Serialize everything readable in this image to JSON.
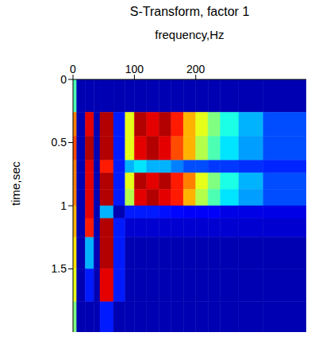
{
  "chart_data": {
    "type": "heatmap",
    "title": "S-Transform, factor 1",
    "x_label": "frequency,Hz",
    "y_label": "time,sec",
    "xlim": [
      0,
      380
    ],
    "ylim": [
      0,
      2
    ],
    "xticks": [
      0,
      100,
      200
    ],
    "yticks": [
      0,
      0.5,
      1,
      1.5
    ],
    "x_edges": [
      0,
      6,
      20,
      34,
      44,
      66,
      85,
      100,
      120,
      140,
      160,
      180,
      200,
      220,
      240,
      270,
      310,
      380
    ],
    "y_edges": [
      0,
      0.26,
      0.45,
      0.64,
      0.74,
      0.87,
      1.0,
      1.1,
      1.25,
      1.5,
      1.76,
      2.0
    ],
    "color_range": [
      0,
      1
    ],
    "cells": [
      [
        0.45,
        0.05,
        0.05,
        0.05,
        0.05,
        0.05,
        0.05,
        0.05,
        0.05,
        0.05,
        0.05,
        0.05,
        0.05,
        0.05,
        0.05,
        0.05,
        0.05
      ],
      [
        0.75,
        0.05,
        0.9,
        0.05,
        0.95,
        0.15,
        0.6,
        0.95,
        0.9,
        0.95,
        0.85,
        0.7,
        0.6,
        0.5,
        0.4,
        0.3,
        0.2
      ],
      [
        0.8,
        0.05,
        0.95,
        0.05,
        0.95,
        0.15,
        0.6,
        0.9,
        0.95,
        0.9,
        0.8,
        0.7,
        0.55,
        0.45,
        0.35,
        0.28,
        0.2
      ],
      [
        0.75,
        0.05,
        0.9,
        0.05,
        0.85,
        0.15,
        0.3,
        0.35,
        0.3,
        0.3,
        0.25,
        0.2,
        0.2,
        0.18,
        0.18,
        0.17,
        0.16
      ],
      [
        0.75,
        0.05,
        0.9,
        0.05,
        0.95,
        0.15,
        0.6,
        0.95,
        0.9,
        0.95,
        0.85,
        0.75,
        0.6,
        0.5,
        0.4,
        0.3,
        0.2
      ],
      [
        0.75,
        0.05,
        0.9,
        0.05,
        0.95,
        0.15,
        0.55,
        0.9,
        0.95,
        0.9,
        0.85,
        0.7,
        0.55,
        0.45,
        0.35,
        0.28,
        0.2
      ],
      [
        0.7,
        0.05,
        0.9,
        0.05,
        0.3,
        0.05,
        0.15,
        0.15,
        0.15,
        0.14,
        0.13,
        0.12,
        0.12,
        0.12,
        0.1,
        0.1,
        0.1
      ],
      [
        0.7,
        0.05,
        0.85,
        0.05,
        0.95,
        0.15,
        0.08,
        0.08,
        0.08,
        0.08,
        0.08,
        0.08,
        0.08,
        0.08,
        0.08,
        0.08,
        0.08
      ],
      [
        0.65,
        0.05,
        0.3,
        0.05,
        0.95,
        0.15,
        0.05,
        0.05,
        0.05,
        0.05,
        0.05,
        0.05,
        0.05,
        0.05,
        0.05,
        0.05,
        0.05
      ],
      [
        0.6,
        0.05,
        0.15,
        0.05,
        0.9,
        0.15,
        0.05,
        0.05,
        0.05,
        0.05,
        0.05,
        0.05,
        0.05,
        0.05,
        0.05,
        0.05,
        0.05
      ],
      [
        0.5,
        0.05,
        0.05,
        0.05,
        0.15,
        0.05,
        0.05,
        0.05,
        0.05,
        0.05,
        0.05,
        0.05,
        0.05,
        0.05,
        0.05,
        0.05,
        0.05
      ]
    ]
  }
}
